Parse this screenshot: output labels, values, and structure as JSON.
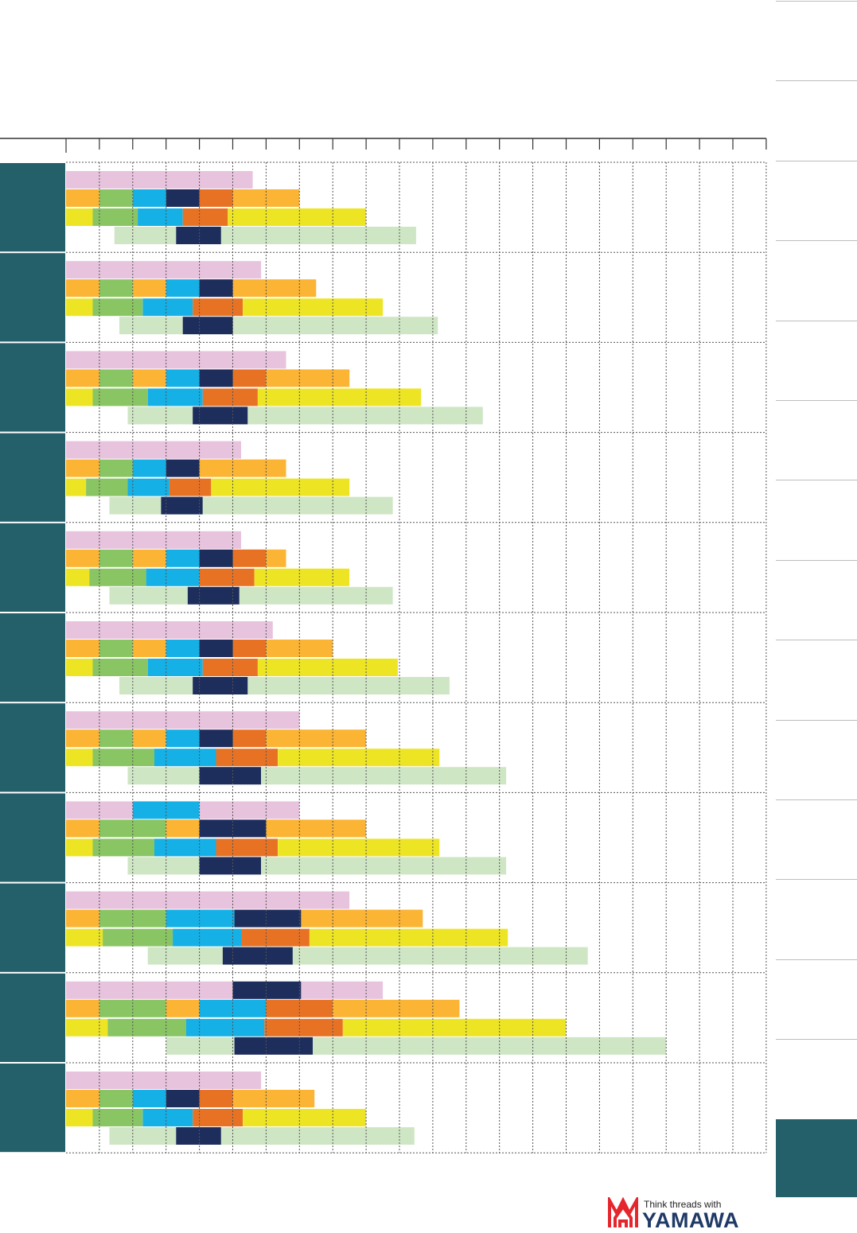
{
  "brand": {
    "tagline": "Think threads with",
    "name": "YAMAWA",
    "logo": "yamawa-logo"
  },
  "colors": {
    "row_header": "#24606a",
    "pink": "#e8c3de",
    "orange": "#fbb433",
    "green": "#8ac563",
    "cyan": "#14b0e6",
    "navy": "#1d2d5c",
    "dorange": "#e87224",
    "yellow": "#ede524",
    "lgreen": "#cfe6c5",
    "grid": "#555555"
  },
  "chart_data": {
    "type": "bar",
    "orientation": "horizontal",
    "stacked": true,
    "title": "",
    "xlabel": "",
    "ylabel": "",
    "xlim": [
      0,
      21
    ],
    "x_ticks": [
      1,
      2,
      3,
      4,
      5,
      6,
      7,
      8,
      9,
      10,
      11,
      12,
      13,
      14,
      15,
      16,
      17,
      18,
      19,
      20,
      21
    ],
    "grid": true,
    "groups": [
      {
        "rows": [
          [
            [
              "pink",
              0,
              5.6
            ]
          ],
          [
            [
              "orange",
              0,
              1
            ],
            [
              "green",
              1,
              2
            ],
            [
              "cyan",
              2,
              3
            ],
            [
              "navy",
              3,
              4
            ],
            [
              "dorange",
              4,
              5
            ],
            [
              "orange",
              5,
              7
            ]
          ],
          [
            [
              "yellow",
              0,
              0.8
            ],
            [
              "green",
              0.8,
              2.15
            ],
            [
              "cyan",
              2.15,
              3.5
            ],
            [
              "dorange",
              3.5,
              4.85
            ],
            [
              "yellow",
              4.85,
              9
            ]
          ],
          [
            [
              "lgreen",
              1.45,
              3.3
            ],
            [
              "navy",
              3.3,
              4.65
            ],
            [
              "lgreen",
              4.65,
              10.5
            ]
          ]
        ]
      },
      {
        "rows": [
          [
            [
              "pink",
              0,
              5.85
            ]
          ],
          [
            [
              "orange",
              0,
              1
            ],
            [
              "green",
              1,
              2
            ],
            [
              "orange",
              2,
              3
            ],
            [
              "cyan",
              3,
              4
            ],
            [
              "navy",
              4,
              5
            ],
            [
              "orange",
              5,
              7.5
            ]
          ],
          [
            [
              "yellow",
              0,
              0.8
            ],
            [
              "green",
              0.8,
              2.3
            ],
            [
              "cyan",
              2.3,
              3.8
            ],
            [
              "dorange",
              3.8,
              5.3
            ],
            [
              "yellow",
              5.3,
              9.5
            ]
          ],
          [
            [
              "lgreen",
              1.6,
              3.5
            ],
            [
              "navy",
              3.5,
              5
            ],
            [
              "lgreen",
              5,
              11.15
            ]
          ]
        ]
      },
      {
        "rows": [
          [
            [
              "pink",
              0,
              6.6
            ]
          ],
          [
            [
              "orange",
              0,
              1
            ],
            [
              "green",
              1,
              2
            ],
            [
              "orange",
              2,
              3
            ],
            [
              "cyan",
              3,
              4
            ],
            [
              "navy",
              4,
              5
            ],
            [
              "dorange",
              5,
              6
            ],
            [
              "orange",
              6,
              8.5
            ]
          ],
          [
            [
              "yellow",
              0,
              0.8
            ],
            [
              "green",
              0.8,
              2.45
            ],
            [
              "cyan",
              2.45,
              4.1
            ],
            [
              "dorange",
              4.1,
              5.75
            ],
            [
              "yellow",
              5.75,
              10.65
            ]
          ],
          [
            [
              "lgreen",
              1.85,
              3.8
            ],
            [
              "navy",
              3.8,
              5.45
            ],
            [
              "lgreen",
              5.45,
              12.5
            ]
          ]
        ]
      },
      {
        "rows": [
          [
            [
              "pink",
              0,
              5.25
            ]
          ],
          [
            [
              "orange",
              0,
              1
            ],
            [
              "green",
              1,
              2
            ],
            [
              "cyan",
              2,
              3
            ],
            [
              "navy",
              3,
              4
            ],
            [
              "orange",
              4,
              6.6
            ]
          ],
          [
            [
              "yellow",
              0,
              0.6
            ],
            [
              "green",
              0.6,
              1.85
            ],
            [
              "cyan",
              1.85,
              3.1
            ],
            [
              "dorange",
              3.1,
              4.35
            ],
            [
              "yellow",
              4.35,
              8.5
            ]
          ],
          [
            [
              "lgreen",
              1.3,
              2.85
            ],
            [
              "navy",
              2.85,
              4.1
            ],
            [
              "lgreen",
              4.1,
              9.8
            ]
          ]
        ]
      },
      {
        "rows": [
          [
            [
              "pink",
              0,
              5.25
            ]
          ],
          [
            [
              "orange",
              0,
              1
            ],
            [
              "green",
              1,
              2
            ],
            [
              "orange",
              2,
              3
            ],
            [
              "cyan",
              3,
              4
            ],
            [
              "navy",
              4,
              5
            ],
            [
              "dorange",
              5,
              6
            ],
            [
              "orange",
              6,
              6.6
            ]
          ],
          [
            [
              "yellow",
              0,
              0.7
            ],
            [
              "green",
              0.7,
              2.4
            ],
            [
              "cyan",
              2.4,
              4
            ],
            [
              "dorange",
              4,
              5.65
            ],
            [
              "yellow",
              5.65,
              8.5
            ]
          ],
          [
            [
              "lgreen",
              1.3,
              3.65
            ],
            [
              "navy",
              3.65,
              5.2
            ],
            [
              "lgreen",
              5.2,
              9.8
            ]
          ]
        ]
      },
      {
        "rows": [
          [
            [
              "pink",
              0,
              6.2
            ]
          ],
          [
            [
              "orange",
              0,
              1
            ],
            [
              "green",
              1,
              2
            ],
            [
              "orange",
              2,
              3
            ],
            [
              "cyan",
              3,
              4
            ],
            [
              "navy",
              4,
              5
            ],
            [
              "dorange",
              5,
              6
            ],
            [
              "orange",
              6,
              8
            ]
          ],
          [
            [
              "yellow",
              0,
              0.8
            ],
            [
              "green",
              0.8,
              2.45
            ],
            [
              "cyan",
              2.45,
              4.1
            ],
            [
              "dorange",
              4.1,
              5.75
            ],
            [
              "yellow",
              5.75,
              9.95
            ]
          ],
          [
            [
              "lgreen",
              1.6,
              3.8
            ],
            [
              "navy",
              3.8,
              5.45
            ],
            [
              "lgreen",
              5.45,
              11.5
            ]
          ]
        ]
      },
      {
        "rows": [
          [
            [
              "pink",
              0,
              7
            ]
          ],
          [
            [
              "orange",
              0,
              1
            ],
            [
              "green",
              1,
              2
            ],
            [
              "orange",
              2,
              3
            ],
            [
              "cyan",
              3,
              4
            ],
            [
              "navy",
              4,
              5
            ],
            [
              "dorange",
              5,
              6
            ],
            [
              "orange",
              6,
              9
            ]
          ],
          [
            [
              "yellow",
              0,
              0.8
            ],
            [
              "green",
              0.8,
              2.65
            ],
            [
              "cyan",
              2.65,
              4.5
            ],
            [
              "dorange",
              4.5,
              6.35
            ],
            [
              "yellow",
              6.35,
              11.2
            ]
          ],
          [
            [
              "lgreen",
              1.85,
              4
            ],
            [
              "navy",
              4,
              5.85
            ],
            [
              "lgreen",
              5.85,
              13.2
            ]
          ]
        ]
      },
      {
        "rows": [
          [
            [
              "pink",
              0,
              2
            ],
            [
              "cyan",
              2,
              4
            ],
            [
              "pink",
              4,
              7
            ]
          ],
          [
            [
              "orange",
              0,
              1
            ],
            [
              "green",
              1,
              3
            ],
            [
              "orange",
              3,
              4
            ],
            [
              "navy",
              4,
              6
            ],
            [
              "orange",
              6,
              9
            ]
          ],
          [
            [
              "yellow",
              0,
              0.8
            ],
            [
              "green",
              0.8,
              2.65
            ],
            [
              "cyan",
              2.65,
              4.5
            ],
            [
              "dorange",
              4.5,
              6.35
            ],
            [
              "yellow",
              6.35,
              11.2
            ]
          ],
          [
            [
              "lgreen",
              1.85,
              4
            ],
            [
              "navy",
              4,
              5.85
            ],
            [
              "lgreen",
              5.85,
              13.2
            ]
          ]
        ]
      },
      {
        "rows": [
          [
            [
              "pink",
              0,
              8.5
            ]
          ],
          [
            [
              "orange",
              0,
              1
            ],
            [
              "green",
              1,
              3
            ],
            [
              "cyan",
              3,
              5.05
            ],
            [
              "navy",
              5.05,
              7.05
            ],
            [
              "orange",
              7.05,
              10.7
            ]
          ],
          [
            [
              "yellow",
              0,
              1.1
            ],
            [
              "green",
              1.1,
              3.2
            ],
            [
              "cyan",
              3.2,
              5.25
            ],
            [
              "dorange",
              5.25,
              7.3
            ],
            [
              "yellow",
              7.3,
              13.25
            ]
          ],
          [
            [
              "lgreen",
              2.45,
              4.7
            ],
            [
              "navy",
              4.7,
              6.8
            ],
            [
              "lgreen",
              6.8,
              15.65
            ]
          ]
        ]
      },
      {
        "rows": [
          [
            [
              "pink",
              0,
              5
            ],
            [
              "navy",
              5,
              7.05
            ],
            [
              "pink",
              7.05,
              9.5
            ]
          ],
          [
            [
              "orange",
              0,
              1
            ],
            [
              "green",
              1,
              3
            ],
            [
              "orange",
              3,
              4
            ],
            [
              "cyan",
              4,
              6
            ],
            [
              "dorange",
              6,
              8
            ],
            [
              "orange",
              8,
              11.8
            ]
          ],
          [
            [
              "yellow",
              0,
              1.25
            ],
            [
              "green",
              1.25,
              3.6
            ],
            [
              "cyan",
              3.6,
              5.95
            ],
            [
              "dorange",
              5.95,
              8.3
            ],
            [
              "yellow",
              8.3,
              15
            ]
          ],
          [
            [
              "lgreen",
              3,
              5.05
            ],
            [
              "navy",
              5.05,
              7.4
            ],
            [
              "lgreen",
              7.4,
              18
            ]
          ]
        ]
      },
      {
        "rows": [
          [
            [
              "pink",
              0,
              5.85
            ]
          ],
          [
            [
              "orange",
              0,
              1
            ],
            [
              "green",
              1,
              2
            ],
            [
              "cyan",
              2,
              3
            ],
            [
              "navy",
              3,
              4
            ],
            [
              "dorange",
              4,
              5
            ],
            [
              "orange",
              5,
              7.45
            ]
          ],
          [
            [
              "yellow",
              0,
              0.8
            ],
            [
              "green",
              0.8,
              2.3
            ],
            [
              "cyan",
              2.3,
              3.8
            ],
            [
              "dorange",
              3.8,
              5.3
            ],
            [
              "yellow",
              5.3,
              9
            ]
          ],
          [
            [
              "lgreen",
              1.3,
              3.3
            ],
            [
              "navy",
              3.3,
              4.65
            ],
            [
              "lgreen",
              4.65,
              10.45
            ]
          ]
        ]
      }
    ]
  }
}
